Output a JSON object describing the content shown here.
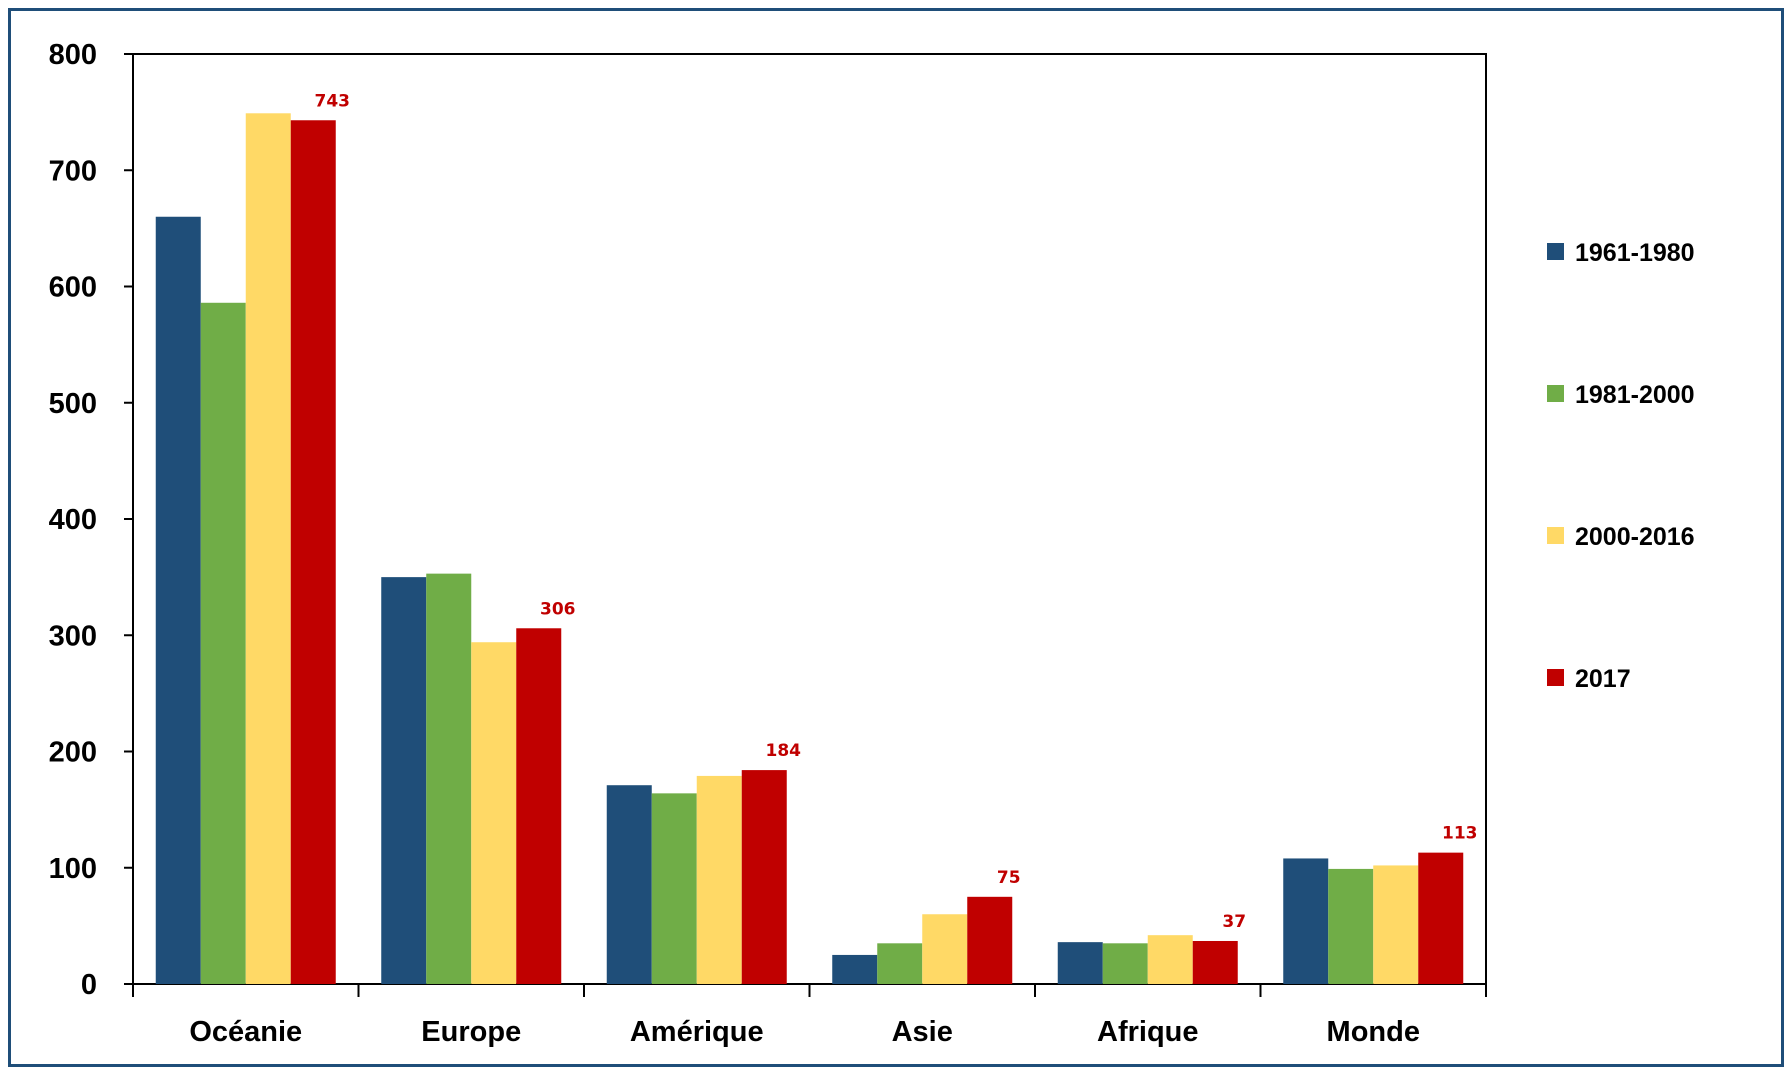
{
  "chart_data": {
    "type": "bar",
    "title": "",
    "xlabel": "",
    "ylabel": "",
    "ylim": [
      0,
      800
    ],
    "yticks": [
      0,
      100,
      200,
      300,
      400,
      500,
      600,
      700,
      800
    ],
    "grid": false,
    "legend_position": "right",
    "categories": [
      "Océanie",
      "Europe",
      "Amérique",
      "Asie",
      "Afrique",
      "Monde"
    ],
    "series": [
      {
        "name": "1961-1980",
        "color": "#1F4E79",
        "values": [
          660,
          350,
          171,
          25,
          36,
          108
        ]
      },
      {
        "name": "1981-2000",
        "color": "#70AD47",
        "values": [
          586,
          353,
          164,
          35,
          35,
          99
        ]
      },
      {
        "name": "2000-2016",
        "color": "#FFD966",
        "values": [
          749,
          294,
          179,
          60,
          42,
          102
        ]
      },
      {
        "name": "2017",
        "color": "#C00000",
        "values": [
          743,
          306,
          184,
          75,
          37,
          113
        ]
      }
    ],
    "data_labels": {
      "series": "2017",
      "values": [
        "743",
        "306",
        "184",
        "75",
        "37",
        "113"
      ],
      "color": "#C00000"
    }
  }
}
